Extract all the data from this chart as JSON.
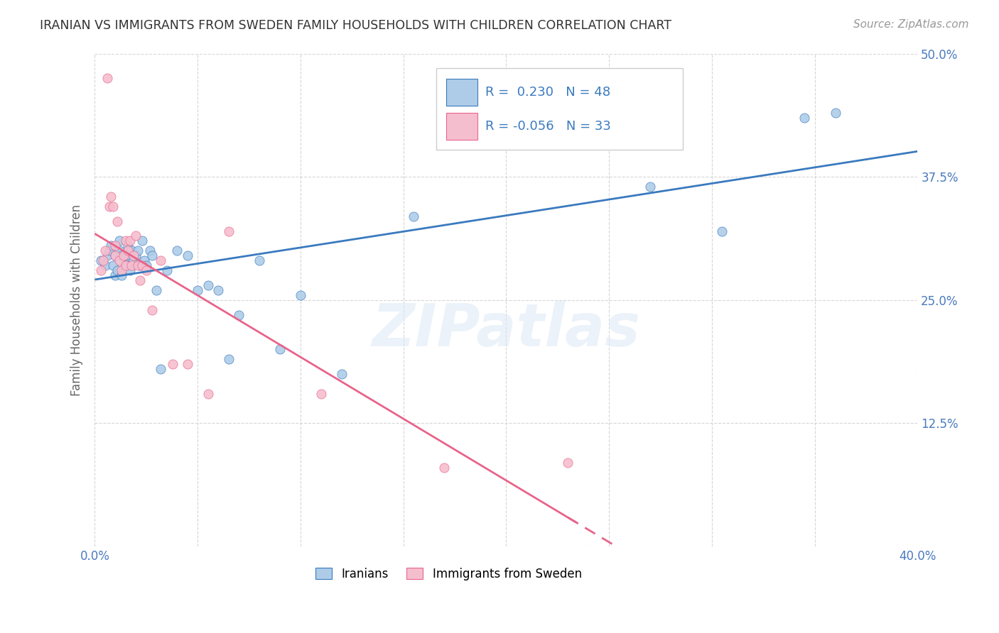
{
  "title": "IRANIAN VS IMMIGRANTS FROM SWEDEN FAMILY HOUSEHOLDS WITH CHILDREN CORRELATION CHART",
  "source": "Source: ZipAtlas.com",
  "ylabel": "Family Households with Children",
  "watermark": "ZIPatlas",
  "xmin": 0.0,
  "xmax": 0.4,
  "ymin": 0.0,
  "ymax": 0.5,
  "yticks": [
    0.0,
    0.125,
    0.25,
    0.375,
    0.5
  ],
  "ytick_labels": [
    "",
    "12.5%",
    "25.0%",
    "37.5%",
    "50.0%"
  ],
  "xticks": [
    0.0,
    0.05,
    0.1,
    0.15,
    0.2,
    0.25,
    0.3,
    0.35,
    0.4
  ],
  "xtick_labels": [
    "0.0%",
    "",
    "",
    "",
    "",
    "",
    "",
    "",
    "40.0%"
  ],
  "iranians_color": "#aecce8",
  "immigrants_color": "#f5bece",
  "trend_iranian_color": "#3a7abf",
  "trend_immigrant_color": "#e8648a",
  "legend_R_iranian": "0.230",
  "legend_N_iranian": "48",
  "legend_R_immigrant": "-0.056",
  "legend_N_immigrant": "33",
  "iranians_x": [
    0.003,
    0.005,
    0.006,
    0.007,
    0.008,
    0.009,
    0.01,
    0.01,
    0.011,
    0.012,
    0.012,
    0.013,
    0.013,
    0.014,
    0.015,
    0.015,
    0.016,
    0.017,
    0.018,
    0.019,
    0.02,
    0.021,
    0.022,
    0.023,
    0.024,
    0.025,
    0.027,
    0.028,
    0.03,
    0.032,
    0.035,
    0.04,
    0.045,
    0.05,
    0.055,
    0.06,
    0.065,
    0.07,
    0.08,
    0.09,
    0.1,
    0.12,
    0.155,
    0.215,
    0.27,
    0.305,
    0.345,
    0.36
  ],
  "iranians_y": [
    0.29,
    0.285,
    0.295,
    0.3,
    0.305,
    0.285,
    0.275,
    0.295,
    0.28,
    0.3,
    0.31,
    0.275,
    0.295,
    0.29,
    0.285,
    0.295,
    0.305,
    0.28,
    0.3,
    0.29,
    0.295,
    0.3,
    0.285,
    0.31,
    0.29,
    0.285,
    0.3,
    0.295,
    0.26,
    0.18,
    0.28,
    0.3,
    0.295,
    0.26,
    0.265,
    0.26,
    0.19,
    0.235,
    0.29,
    0.2,
    0.255,
    0.175,
    0.335,
    0.415,
    0.365,
    0.32,
    0.435,
    0.44
  ],
  "immigrants_x": [
    0.003,
    0.004,
    0.005,
    0.006,
    0.007,
    0.008,
    0.009,
    0.01,
    0.01,
    0.011,
    0.012,
    0.013,
    0.014,
    0.015,
    0.015,
    0.016,
    0.017,
    0.018,
    0.019,
    0.02,
    0.021,
    0.022,
    0.023,
    0.025,
    0.028,
    0.032,
    0.038,
    0.045,
    0.055,
    0.065,
    0.11,
    0.17,
    0.23
  ],
  "immigrants_y": [
    0.28,
    0.29,
    0.3,
    0.475,
    0.345,
    0.355,
    0.345,
    0.295,
    0.305,
    0.33,
    0.29,
    0.28,
    0.295,
    0.285,
    0.31,
    0.3,
    0.31,
    0.285,
    0.295,
    0.315,
    0.285,
    0.27,
    0.285,
    0.28,
    0.24,
    0.29,
    0.185,
    0.185,
    0.155,
    0.32,
    0.155,
    0.08,
    0.085
  ]
}
